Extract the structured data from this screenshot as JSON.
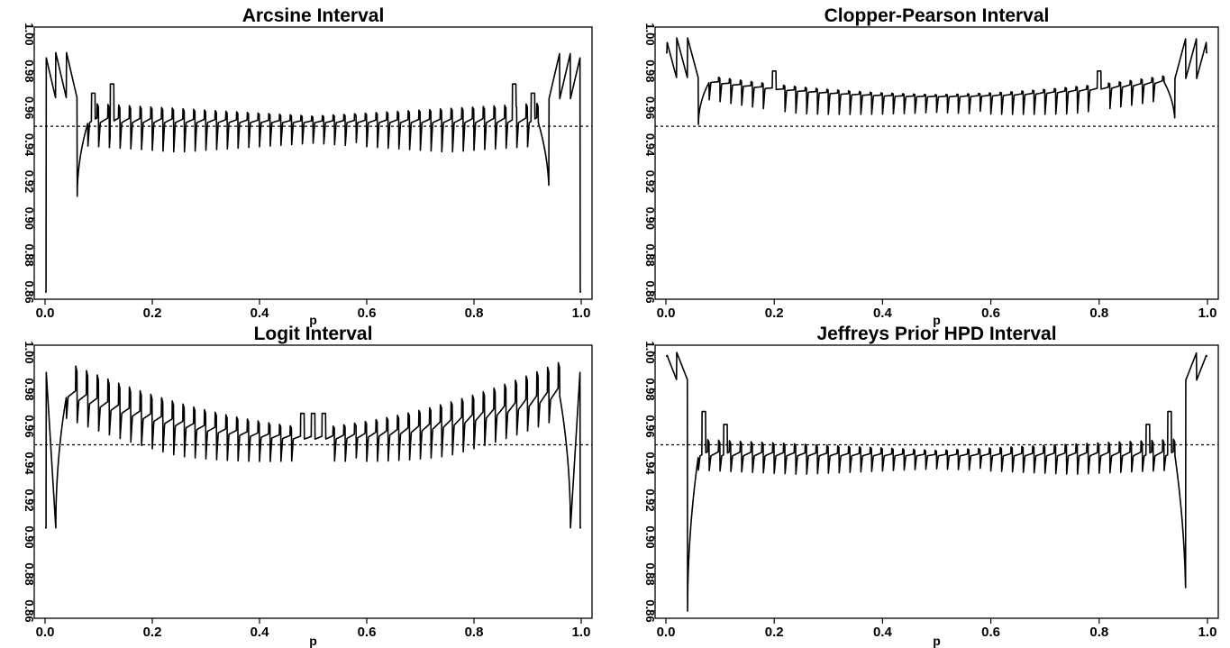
{
  "chart_data": [
    {
      "type": "line",
      "title": "Arcsine Interval",
      "xlabel": "p",
      "ylabel": "",
      "xlim": [
        0.0,
        1.0
      ],
      "ylim": [
        0.86,
        1.0
      ],
      "xticks": [
        "0.0",
        "0.2",
        "0.4",
        "0.6",
        "0.8",
        "1.0"
      ],
      "yticks": [
        "0.86",
        "0.88",
        "0.90",
        "0.92",
        "0.94",
        "0.96",
        "0.98",
        "1.00"
      ],
      "reference_line": 0.95,
      "pattern": {
        "n": 50,
        "middle": 0.952,
        "curve": 0.0,
        "tooth_high": 0.012,
        "tooth_low": 0.016,
        "edge_k": 3,
        "edge_low": 0.965,
        "edge_high": 0.99,
        "edge_dip": 0.912,
        "end_value": 0.86,
        "high_peaks": [
          {
            "x": 0.125,
            "y": 0.973
          },
          {
            "x": 0.875,
            "y": 0.973
          },
          {
            "x": 0.09,
            "y": 0.968
          },
          {
            "x": 0.91,
            "y": 0.968
          }
        ]
      },
      "series": [
        {
          "values_summary": "coverage probability oscillates around 0.952, spikes near the edges"
        }
      ]
    },
    {
      "type": "line",
      "title": "Clopper-Pearson Interval",
      "xlabel": "p",
      "ylabel": "",
      "xlim": [
        0.0,
        1.0
      ],
      "ylim": [
        0.86,
        1.0
      ],
      "xticks": [
        "0.0",
        "0.2",
        "0.4",
        "0.6",
        "0.8",
        "1.0"
      ],
      "yticks": [
        "0.86",
        "0.88",
        "0.90",
        "0.92",
        "0.94",
        "0.96",
        "0.98",
        "1.00"
      ],
      "reference_line": 0.95,
      "pattern": {
        "n": 50,
        "middle": 0.966,
        "curve": 0.045,
        "tooth_high": 0.004,
        "tooth_low": 0.012,
        "edge_k": 3,
        "edge_low": 0.976,
        "edge_high": 0.998,
        "edge_dip": 0.951,
        "end_value": 0.99,
        "high_peaks": [
          {
            "x": 0.2,
            "y": 0.98
          },
          {
            "x": 0.8,
            "y": 0.98
          }
        ]
      },
      "series": [
        {
          "values_summary": "coverage stays above 0.95, around 0.966 in the middle"
        }
      ]
    },
    {
      "type": "line",
      "title": "Logit Interval",
      "xlabel": "p",
      "ylabel": "",
      "xlim": [
        0.0,
        1.0
      ],
      "ylim": [
        0.86,
        1.0
      ],
      "xticks": [
        "0.0",
        "0.2",
        "0.4",
        "0.6",
        "0.8",
        "1.0"
      ],
      "yticks": [
        "0.86",
        "0.88",
        "0.90",
        "0.92",
        "0.94",
        "0.96",
        "0.98",
        "1.00"
      ],
      "reference_line": 0.95,
      "pattern": {
        "n": 50,
        "middle": 0.953,
        "curve": 0.11,
        "tooth_high": 0.02,
        "tooth_low": 0.016,
        "edge_k": 1,
        "edge_low": 0.905,
        "edge_high": 1.0,
        "edge_dip": 0.905,
        "end_value": 0.905,
        "high_peaks": [
          {
            "x": 0.48,
            "y": 0.967
          },
          {
            "x": 0.5,
            "y": 0.967
          },
          {
            "x": 0.52,
            "y": 0.967
          }
        ]
      },
      "series": [
        {
          "values_summary": "coverage near 0.953 in the middle rising to 0.98 toward the edges"
        }
      ]
    },
    {
      "type": "line",
      "title": "Jeffreys Prior HPD Interval",
      "xlabel": "p",
      "ylabel": "",
      "xlim": [
        0.0,
        1.0
      ],
      "ylim": [
        0.86,
        1.0
      ],
      "xticks": [
        "0.0",
        "0.2",
        "0.4",
        "0.6",
        "0.8",
        "1.0"
      ],
      "yticks": [
        "0.86",
        "0.88",
        "0.90",
        "0.92",
        "0.94",
        "0.96",
        "0.98",
        "1.00"
      ],
      "reference_line": 0.95,
      "pattern": {
        "n": 50,
        "middle": 0.944,
        "curve": 0.0,
        "tooth_high": 0.01,
        "tooth_low": 0.01,
        "edge_k": 2,
        "edge_low": 0.985,
        "edge_high": 1.0,
        "edge_dip": 0.86,
        "end_value": 0.998,
        "high_peaks": [
          {
            "x": 0.07,
            "y": 0.968
          },
          {
            "x": 0.93,
            "y": 0.968
          },
          {
            "x": 0.11,
            "y": 0.961
          },
          {
            "x": 0.89,
            "y": 0.961
          }
        ]
      },
      "series": [
        {
          "values_summary": "coverage mostly below 0.95, around 0.935-0.955, drops to 0.86 near the edges"
        }
      ]
    }
  ]
}
